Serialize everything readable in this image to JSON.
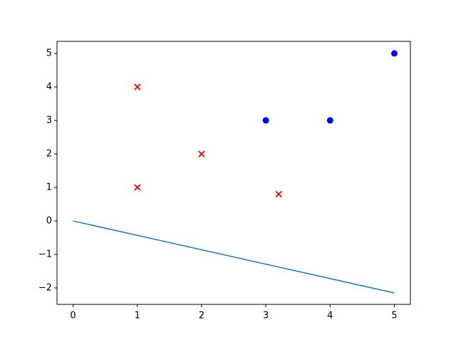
{
  "chart_data": {
    "type": "scatter",
    "xlim": [
      -0.25,
      5.25
    ],
    "xticks": [
      0,
      1,
      2,
      3,
      4,
      5
    ],
    "ylim": [
      -2.49,
      5.36
    ],
    "yticks": [
      {
        "value": -2,
        "label": "−2"
      },
      {
        "value": -1,
        "label": "−1"
      },
      0,
      1,
      2,
      3,
      4,
      5
    ],
    "series": [
      {
        "type": "scatter",
        "marker": "x",
        "color": "#ff0000",
        "x": [
          1,
          1,
          2,
          3.2
        ],
        "values": [
          4,
          1,
          2,
          0.8
        ]
      },
      {
        "type": "scatter",
        "marker": "o",
        "color": "#0000ff",
        "x": [
          3,
          4,
          5
        ],
        "values": [
          3,
          3,
          5
        ]
      },
      {
        "type": "line",
        "color": "#1f77b4",
        "x": [
          0,
          5
        ],
        "values": [
          0,
          -2.15
        ]
      }
    ]
  }
}
